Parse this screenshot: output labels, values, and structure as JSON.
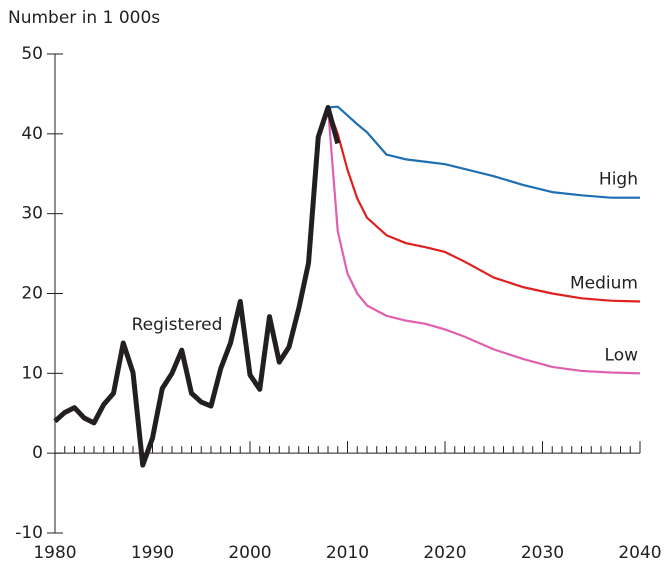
{
  "chart_data": {
    "type": "line",
    "y_label": "Number in 1 000s",
    "xlim": [
      1980,
      2040
    ],
    "xticks": [
      1980,
      1990,
      2000,
      2010,
      2020,
      2030,
      2040
    ],
    "xminorticks": [
      1981,
      1982,
      1983,
      1984,
      1985,
      1986,
      1987,
      1988,
      1989,
      1991,
      1992,
      1993,
      1994,
      1995,
      1996,
      1997,
      1998,
      1999,
      2001,
      2002,
      2003,
      2004,
      2005,
      2006,
      2007,
      2008,
      2009,
      2011,
      2012,
      2013,
      2014,
      2015,
      2016,
      2017,
      2018,
      2019,
      2021,
      2022,
      2023,
      2024,
      2025,
      2026,
      2027,
      2028,
      2029,
      2031,
      2032,
      2033,
      2034,
      2035,
      2036,
      2037,
      2038,
      2039
    ],
    "ylim": [
      -10,
      50
    ],
    "yticks": [
      -10,
      0,
      10,
      20,
      30,
      40,
      50
    ],
    "series": [
      {
        "name": "Registered",
        "color": "#231f20",
        "x": [
          1980,
          1981,
          1982,
          1983,
          1984,
          1985,
          1986,
          1987,
          1988,
          1989,
          1990,
          1991,
          1992,
          1993,
          1994,
          1995,
          1996,
          1997,
          1998,
          1999,
          2000,
          2001,
          2002,
          2003,
          2004,
          2005,
          2006,
          2007,
          2008,
          2009
        ],
        "values": [
          4.0,
          5.1,
          5.7,
          4.4,
          3.8,
          6.1,
          7.5,
          13.8,
          10.1,
          -1.5,
          1.9,
          8.1,
          10.0,
          12.9,
          7.5,
          6.4,
          5.9,
          10.6,
          13.8,
          19.0,
          9.8,
          8.0,
          17.1,
          11.4,
          13.3,
          18.1,
          23.8,
          39.6,
          43.3,
          38.8
        ]
      },
      {
        "name": "High",
        "color": "#1f6fb5",
        "x": [
          2008,
          2009,
          2010,
          2011,
          2012,
          2014,
          2016,
          2018,
          2020,
          2022,
          2025,
          2028,
          2031,
          2034,
          2037,
          2040
        ],
        "values": [
          43.3,
          43.4,
          42.3,
          41.2,
          40.2,
          37.4,
          36.8,
          36.5,
          36.2,
          35.6,
          34.7,
          33.6,
          32.7,
          32.3,
          32.0,
          32.0
        ]
      },
      {
        "name": "Medium",
        "color": "#e02020",
        "x": [
          2008,
          2009,
          2010,
          2011,
          2012,
          2014,
          2016,
          2018,
          2020,
          2022,
          2025,
          2028,
          2031,
          2034,
          2037,
          2040
        ],
        "values": [
          43.3,
          40.0,
          35.5,
          31.9,
          29.5,
          27.3,
          26.3,
          25.8,
          25.2,
          24.0,
          22.0,
          20.8,
          20.0,
          19.4,
          19.1,
          19.0
        ]
      },
      {
        "name": "Low",
        "color": "#e060b0",
        "x": [
          2008,
          2009,
          2010,
          2011,
          2012,
          2014,
          2016,
          2018,
          2020,
          2022,
          2025,
          2028,
          2031,
          2034,
          2037,
          2040
        ],
        "values": [
          43.3,
          27.8,
          22.5,
          20.0,
          18.5,
          17.2,
          16.6,
          16.2,
          15.5,
          14.6,
          13.0,
          11.8,
          10.8,
          10.3,
          10.1,
          10.0
        ]
      }
    ]
  }
}
